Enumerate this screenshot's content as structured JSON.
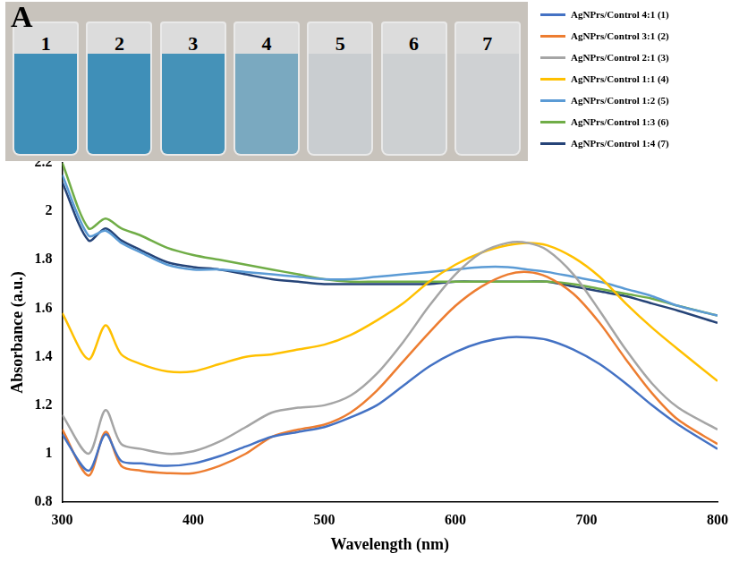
{
  "chart_data": {
    "type": "line",
    "annotations": [
      "A"
    ],
    "inset": {
      "labels": [
        "1",
        "2",
        "3",
        "4",
        "5",
        "6",
        "7"
      ],
      "colors": [
        "#3f8fb8",
        "#3f8fb8",
        "#4592b8",
        "#7aa9c0",
        "#c9cdd0",
        "#cdd0d2",
        "#cfd1d3"
      ]
    },
    "x_label": "Wavelength (nm)",
    "y_label": "Absorbance (a.u.)",
    "x": [
      300,
      320,
      333,
      345,
      360,
      380,
      400,
      420,
      440,
      460,
      480,
      500,
      520,
      540,
      560,
      580,
      600,
      620,
      640,
      655,
      670,
      690,
      710,
      730,
      750,
      770,
      800
    ],
    "series": [
      {
        "name": "AgNPrs/Control 4:1 (1)",
        "color": "#4472c4",
        "values": [
          1.08,
          0.93,
          1.08,
          0.97,
          0.96,
          0.95,
          0.96,
          0.99,
          1.03,
          1.07,
          1.09,
          1.11,
          1.15,
          1.2,
          1.28,
          1.36,
          1.42,
          1.46,
          1.48,
          1.48,
          1.47,
          1.43,
          1.37,
          1.29,
          1.2,
          1.12,
          1.02
        ]
      },
      {
        "name": "AgNPrs/Control 3:1 (2)",
        "color": "#ed7d31",
        "values": [
          1.1,
          0.91,
          1.09,
          0.95,
          0.93,
          0.92,
          0.92,
          0.95,
          1.0,
          1.07,
          1.1,
          1.12,
          1.17,
          1.26,
          1.38,
          1.5,
          1.61,
          1.69,
          1.74,
          1.75,
          1.73,
          1.66,
          1.54,
          1.39,
          1.25,
          1.14,
          1.04
        ]
      },
      {
        "name": "AgNPrs/Control 2:1 (3)",
        "color": "#a5a5a5",
        "values": [
          1.16,
          1.0,
          1.18,
          1.04,
          1.02,
          1.0,
          1.01,
          1.05,
          1.11,
          1.17,
          1.19,
          1.2,
          1.24,
          1.33,
          1.46,
          1.61,
          1.74,
          1.83,
          1.87,
          1.87,
          1.84,
          1.74,
          1.59,
          1.43,
          1.29,
          1.19,
          1.1
        ]
      },
      {
        "name": "AgNPrs/Control 1:1 (4)",
        "color": "#ffc000",
        "values": [
          1.58,
          1.39,
          1.53,
          1.41,
          1.37,
          1.34,
          1.34,
          1.37,
          1.4,
          1.41,
          1.43,
          1.45,
          1.49,
          1.55,
          1.62,
          1.71,
          1.78,
          1.83,
          1.86,
          1.87,
          1.86,
          1.81,
          1.73,
          1.62,
          1.52,
          1.43,
          1.3
        ]
      },
      {
        "name": "AgNPrs/Control 1:2 (5)",
        "color": "#5b9bd5",
        "values": [
          2.15,
          1.9,
          1.92,
          1.87,
          1.83,
          1.78,
          1.76,
          1.76,
          1.75,
          1.74,
          1.73,
          1.72,
          1.72,
          1.73,
          1.74,
          1.75,
          1.76,
          1.77,
          1.77,
          1.76,
          1.75,
          1.73,
          1.71,
          1.68,
          1.65,
          1.61,
          1.57
        ]
      },
      {
        "name": "AgNPrs/Control 1:3 (6)",
        "color": "#70ad47",
        "values": [
          2.2,
          1.93,
          1.97,
          1.93,
          1.9,
          1.85,
          1.82,
          1.8,
          1.78,
          1.76,
          1.74,
          1.72,
          1.71,
          1.71,
          1.71,
          1.71,
          1.71,
          1.71,
          1.71,
          1.71,
          1.71,
          1.7,
          1.68,
          1.66,
          1.64,
          1.61,
          1.57
        ]
      },
      {
        "name": "AgNPrs/Control 1:4 (7)",
        "color": "#264478",
        "values": [
          2.12,
          1.88,
          1.93,
          1.88,
          1.84,
          1.79,
          1.77,
          1.76,
          1.74,
          1.72,
          1.71,
          1.7,
          1.7,
          1.7,
          1.7,
          1.7,
          1.71,
          1.71,
          1.71,
          1.71,
          1.71,
          1.69,
          1.67,
          1.65,
          1.62,
          1.59,
          1.54
        ]
      }
    ],
    "xlim": [
      300,
      800
    ],
    "xticks": [
      300,
      400,
      500,
      600,
      700,
      800
    ],
    "ylim": [
      0.8,
      2.2
    ],
    "yticks": [
      0.8,
      1,
      1.2,
      1.4,
      1.6,
      1.8,
      2,
      2.2
    ],
    "grid": false,
    "legend": "upper right"
  }
}
